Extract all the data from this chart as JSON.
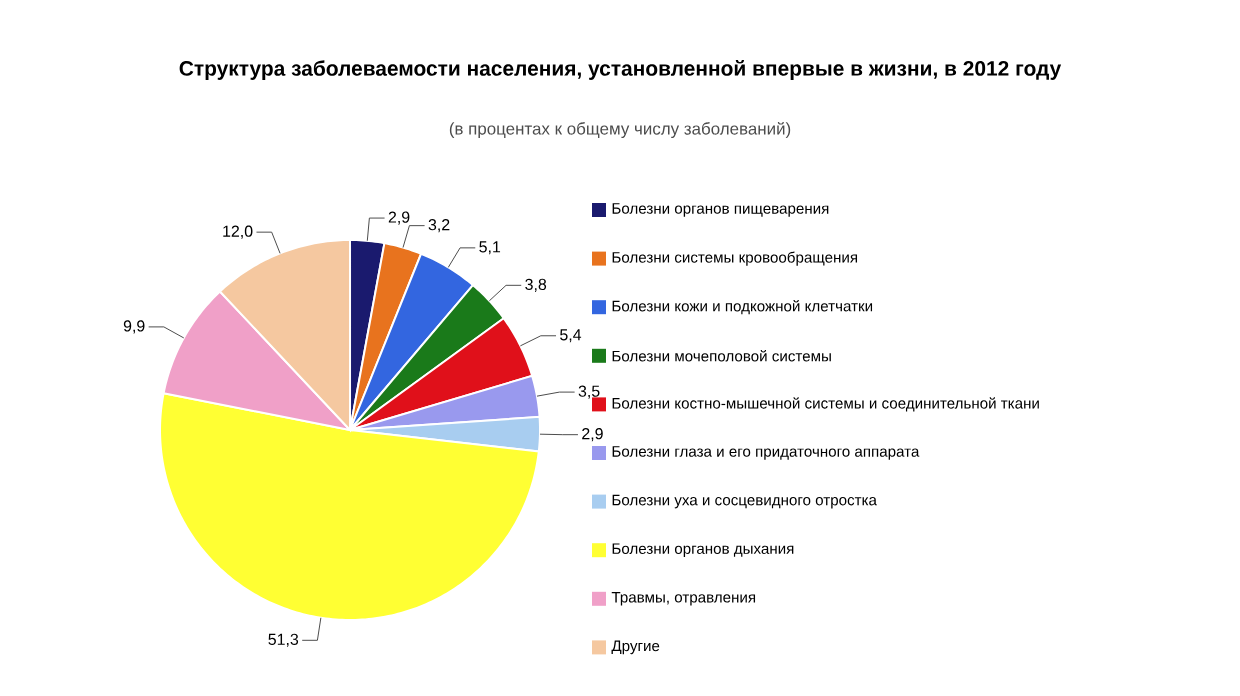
{
  "chart_data": {
    "type": "pie",
    "title": "Структура заболеваемости населения, установленной впервые в жизни, в 2012 году",
    "subtitle": "(в процентах к общему числу заболеваний)",
    "categories": [
      "Болезни органов пищеварения",
      "Болезни системы кровообращения",
      "Болезни кожи и подкожной клетчатки",
      "Болезни мочеполовой системы",
      "Болезни костно-мышечной системы и соединительной ткани",
      "Болезни глаза и его придаточного аппарата",
      "Болезни уха и сосцевидного отростка",
      "Болезни органов дыхания",
      "Травмы, отравления",
      "Другие"
    ],
    "values": [
      2.9,
      3.2,
      5.1,
      3.8,
      5.4,
      3.5,
      2.9,
      51.3,
      9.9,
      12.0
    ],
    "value_labels": [
      "2,9",
      "3,2",
      "5,1",
      "3,8",
      "5,4",
      "3,5",
      "2,9",
      "51,3",
      "9,9",
      "12,0"
    ],
    "colors": [
      "#1a1a6e",
      "#e8731e",
      "#3366e0",
      "#1a7a1a",
      "#e0101a",
      "#9999ee",
      "#a8cdf0",
      "#ffff33",
      "#f0a0c8",
      "#f5c8a0"
    ],
    "legend": "right"
  }
}
